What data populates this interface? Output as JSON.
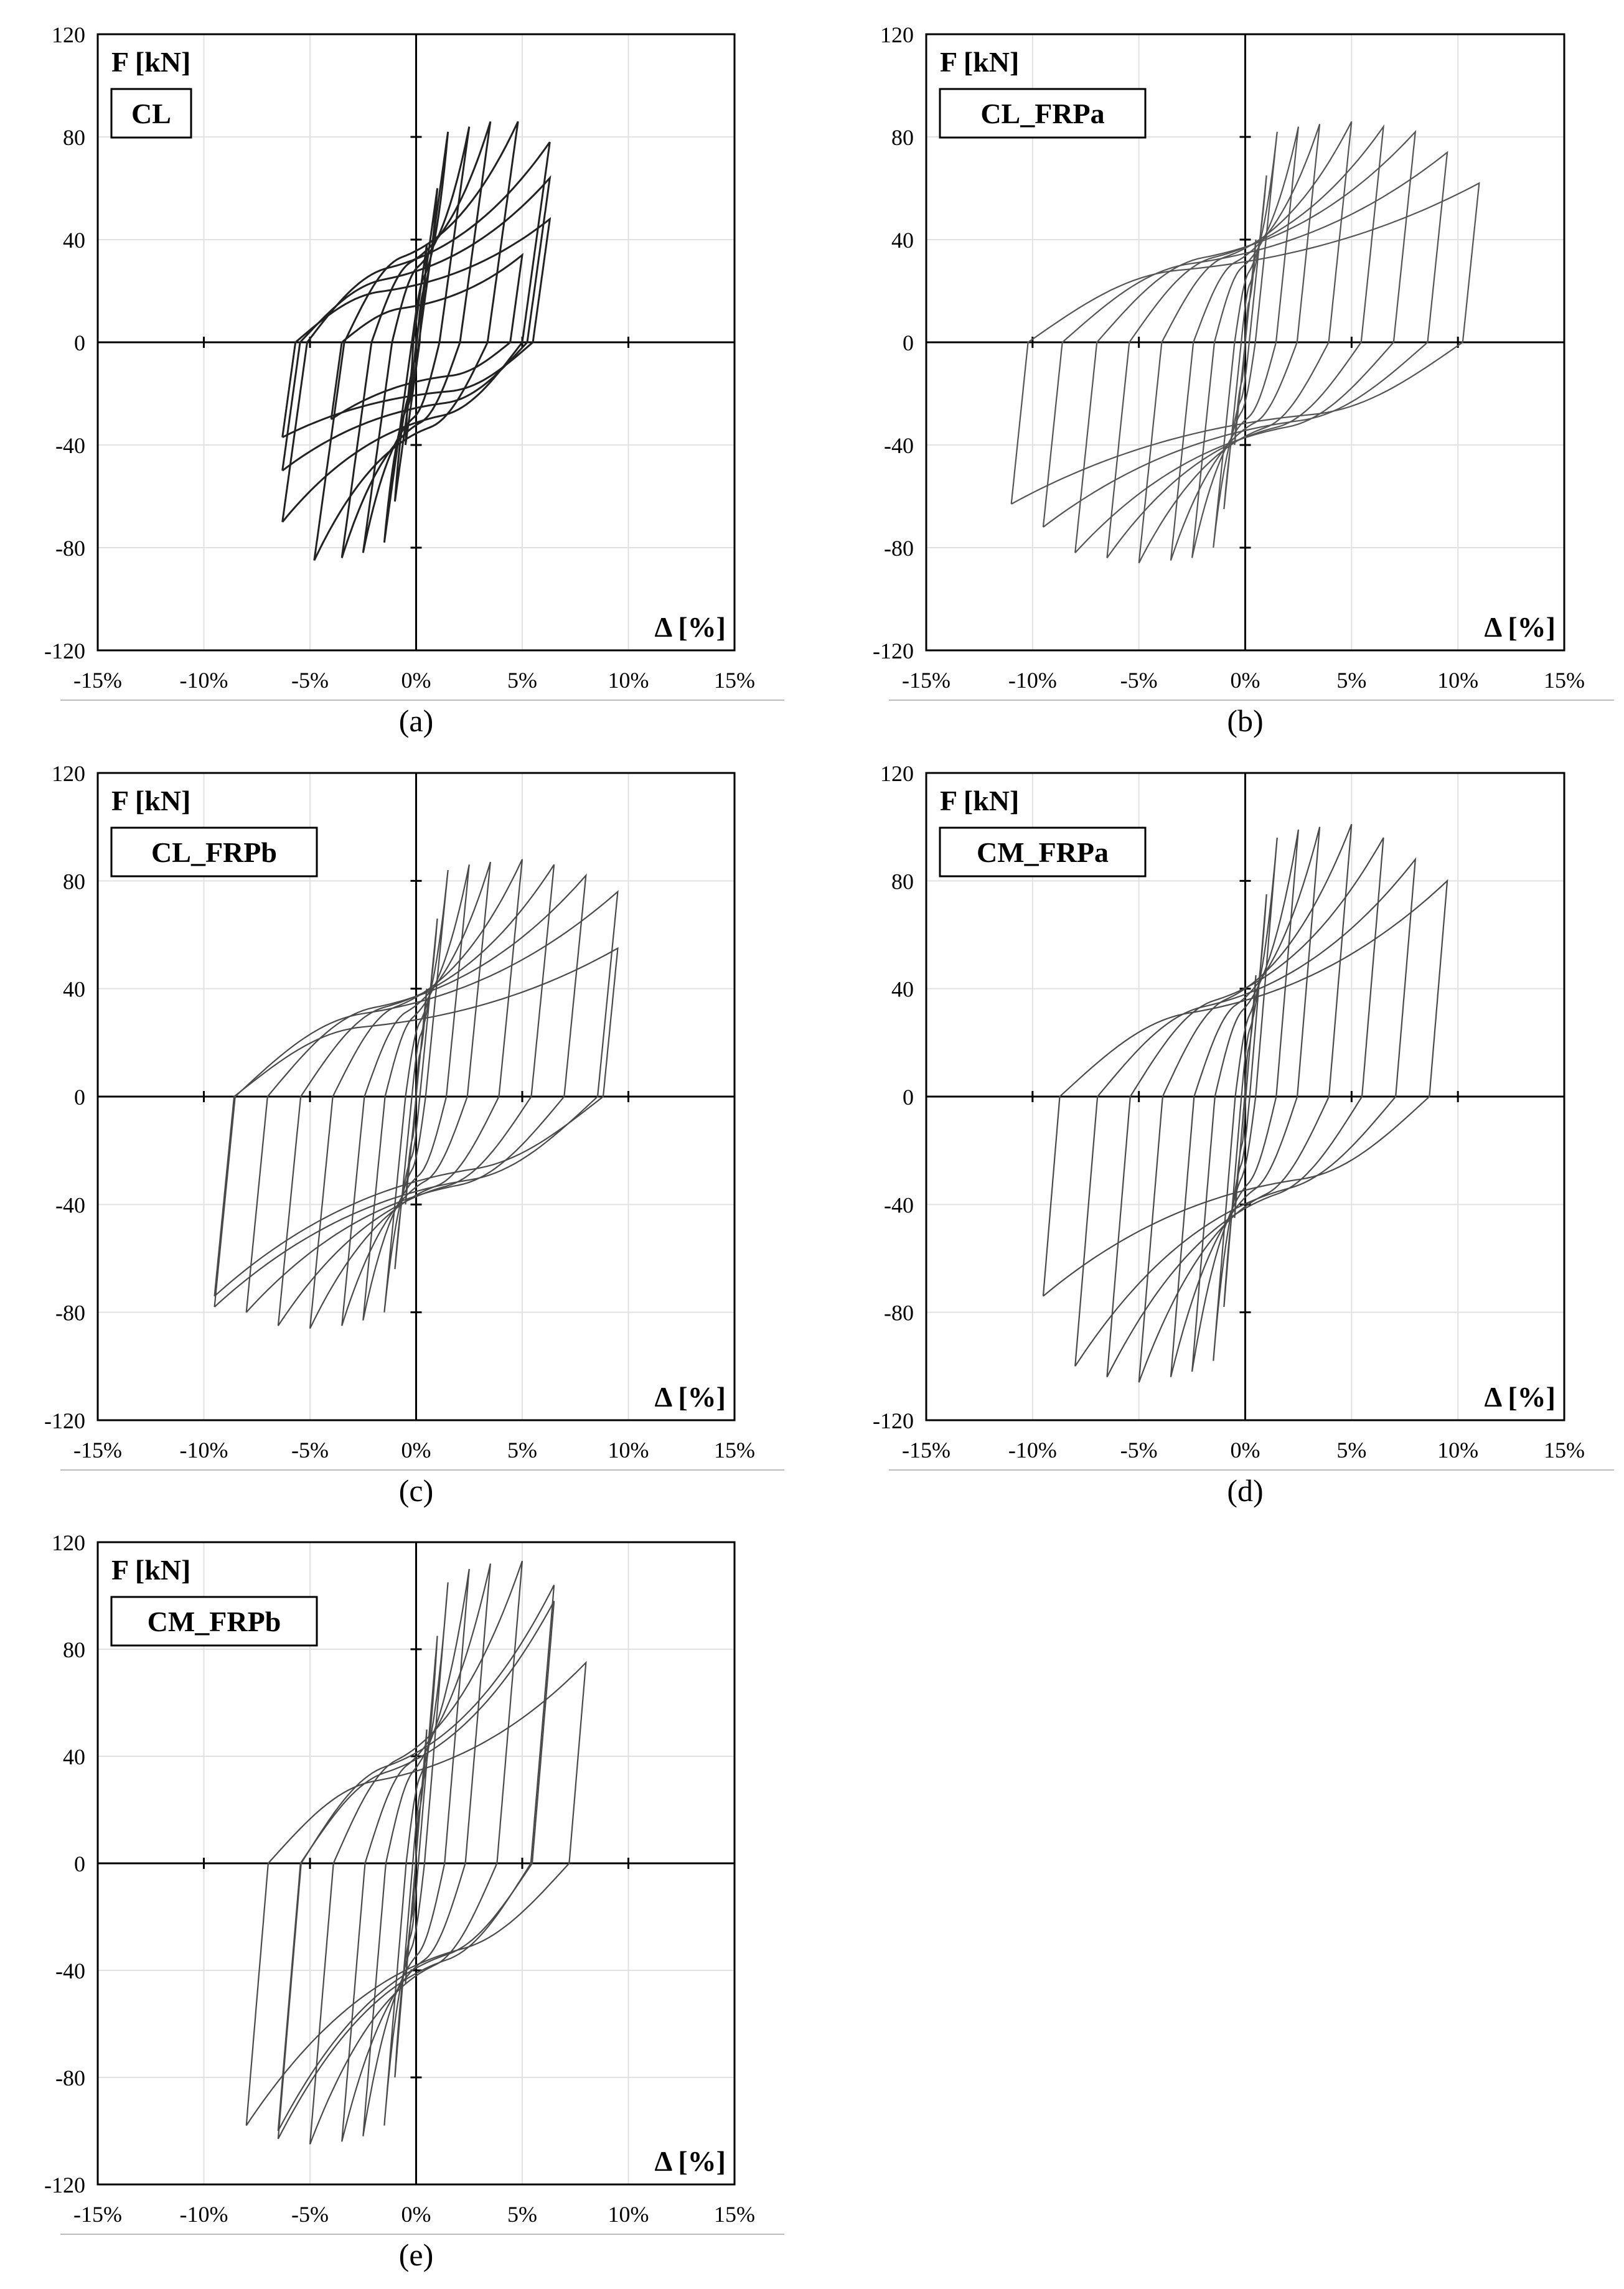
{
  "figure": {
    "captions": [
      "(a)",
      "(b)",
      "(c)",
      "(d)",
      "(e)"
    ]
  },
  "chart_data": [
    {
      "type": "line",
      "panel": "(a)",
      "specimen_label": "CL",
      "ylabel": "F [kN]",
      "xlabel": "Δ [%]",
      "xlim": [
        -15,
        15
      ],
      "ylim": [
        -120,
        120
      ],
      "x_ticks": [
        "-15%",
        "-10%",
        "-5%",
        "0%",
        "5%",
        "10%",
        "15%"
      ],
      "y_ticks": [
        "120",
        "80",
        "40",
        "0",
        "-40",
        "-80",
        "-120"
      ],
      "grid": true,
      "line_color": "#222222",
      "cycles": [
        {
          "dmax": 0.5,
          "fpos": 38,
          "dmin": -0.5,
          "fneg": -40,
          "ypos": 12,
          "yneg": -12
        },
        {
          "dmax": 1.0,
          "fpos": 60,
          "dmin": -1.0,
          "fneg": -62,
          "ypos": 18,
          "yneg": -18
        },
        {
          "dmax": 1.5,
          "fpos": 82,
          "dmin": -1.5,
          "fneg": -78,
          "ypos": 22,
          "yneg": -22
        },
        {
          "dmax": 2.5,
          "fpos": 84,
          "dmin": -2.5,
          "fneg": -82,
          "ypos": 26,
          "yneg": -26
        },
        {
          "dmax": 3.5,
          "fpos": 86,
          "dmin": -3.5,
          "fneg": -84,
          "ypos": 28,
          "yneg": -28
        },
        {
          "dmax": 4.8,
          "fpos": 86,
          "dmin": -4.8,
          "fneg": -85,
          "ypos": 30,
          "yneg": -30
        },
        {
          "dmax": 6.3,
          "fpos": 78,
          "dmin": -6.3,
          "fneg": -70,
          "ypos": 26,
          "yneg": -26
        },
        {
          "dmax": 6.3,
          "fpos": 64,
          "dmin": -6.3,
          "fneg": -50,
          "ypos": 22,
          "yneg": -22
        },
        {
          "dmax": 6.3,
          "fpos": 48,
          "dmin": -6.3,
          "fneg": -37,
          "ypos": 18,
          "yneg": -18
        },
        {
          "dmax": 5.0,
          "fpos": 34,
          "dmin": -4.0,
          "fneg": -30,
          "ypos": 12,
          "yneg": -12
        }
      ]
    },
    {
      "type": "line",
      "panel": "(b)",
      "specimen_label": "CL_FRPa",
      "ylabel": "F [kN]",
      "xlabel": "Δ [%]",
      "xlim": [
        -15,
        15
      ],
      "ylim": [
        -120,
        120
      ],
      "x_ticks": [
        "-15%",
        "-10%",
        "-5%",
        "0%",
        "5%",
        "10%",
        "15%"
      ],
      "y_ticks": [
        "120",
        "80",
        "40",
        "0",
        "-40",
        "-80",
        "-120"
      ],
      "grid": true,
      "line_color": "#555555",
      "cycles": [
        {
          "dmax": 0.5,
          "fpos": 40,
          "dmin": -0.5,
          "fneg": -40,
          "ypos": 14,
          "yneg": -14
        },
        {
          "dmax": 1.0,
          "fpos": 65,
          "dmin": -1.0,
          "fneg": -65,
          "ypos": 20,
          "yneg": -20
        },
        {
          "dmax": 1.5,
          "fpos": 82,
          "dmin": -1.5,
          "fneg": -80,
          "ypos": 24,
          "yneg": -24
        },
        {
          "dmax": 2.5,
          "fpos": 84,
          "dmin": -2.5,
          "fneg": -84,
          "ypos": 26,
          "yneg": -26
        },
        {
          "dmax": 3.5,
          "fpos": 85,
          "dmin": -3.5,
          "fneg": -85,
          "ypos": 28,
          "yneg": -28
        },
        {
          "dmax": 5.0,
          "fpos": 86,
          "dmin": -5.0,
          "fneg": -86,
          "ypos": 30,
          "yneg": -30
        },
        {
          "dmax": 6.5,
          "fpos": 84,
          "dmin": -6.5,
          "fneg": -84,
          "ypos": 30,
          "yneg": -30
        },
        {
          "dmax": 8.0,
          "fpos": 82,
          "dmin": -8.0,
          "fneg": -82,
          "ypos": 30,
          "yneg": -30
        },
        {
          "dmax": 9.5,
          "fpos": 74,
          "dmin": -9.5,
          "fneg": -72,
          "ypos": 28,
          "yneg": -28
        },
        {
          "dmax": 11.0,
          "fpos": 62,
          "dmin": -11.0,
          "fneg": -63,
          "ypos": 26,
          "yneg": -26
        }
      ]
    },
    {
      "type": "line",
      "panel": "(c)",
      "specimen_label": "CL_FRPb",
      "ylabel": "F [kN]",
      "xlabel": "Δ [%]",
      "xlim": [
        -15,
        15
      ],
      "ylim": [
        -120,
        120
      ],
      "x_ticks": [
        "-15%",
        "-10%",
        "-5%",
        "0%",
        "5%",
        "10%",
        "15%"
      ],
      "y_ticks": [
        "120",
        "80",
        "40",
        "0",
        "-40",
        "-80",
        "-120"
      ],
      "grid": true,
      "line_color": "#4a4a4a",
      "cycles": [
        {
          "dmax": 0.5,
          "fpos": 40,
          "dmin": -0.5,
          "fneg": -40,
          "ypos": 14,
          "yneg": -14
        },
        {
          "dmax": 1.0,
          "fpos": 66,
          "dmin": -1.0,
          "fneg": -64,
          "ypos": 20,
          "yneg": -20
        },
        {
          "dmax": 1.5,
          "fpos": 84,
          "dmin": -1.5,
          "fneg": -80,
          "ypos": 24,
          "yneg": -24
        },
        {
          "dmax": 2.5,
          "fpos": 86,
          "dmin": -2.5,
          "fneg": -83,
          "ypos": 26,
          "yneg": -26
        },
        {
          "dmax": 3.5,
          "fpos": 87,
          "dmin": -3.5,
          "fneg": -85,
          "ypos": 28,
          "yneg": -28
        },
        {
          "dmax": 5.0,
          "fpos": 88,
          "dmin": -5.0,
          "fneg": -86,
          "ypos": 30,
          "yneg": -30
        },
        {
          "dmax": 6.5,
          "fpos": 86,
          "dmin": -6.5,
          "fneg": -85,
          "ypos": 30,
          "yneg": -30
        },
        {
          "dmax": 8.0,
          "fpos": 82,
          "dmin": -8.0,
          "fneg": -80,
          "ypos": 30,
          "yneg": -30
        },
        {
          "dmax": 9.5,
          "fpos": 76,
          "dmin": -9.5,
          "fneg": -78,
          "ypos": 28,
          "yneg": -28
        },
        {
          "dmax": 9.5,
          "fpos": 55,
          "dmin": -9.5,
          "fneg": -74,
          "ypos": 24,
          "yneg": -24
        }
      ]
    },
    {
      "type": "line",
      "panel": "(d)",
      "specimen_label": "CM_FRPa",
      "ylabel": "F [kN]",
      "xlabel": "Δ [%]",
      "xlim": [
        -15,
        15
      ],
      "ylim": [
        -120,
        120
      ],
      "x_ticks": [
        "-15%",
        "-10%",
        "-5%",
        "0%",
        "5%",
        "10%",
        "15%"
      ],
      "y_ticks": [
        "120",
        "80",
        "40",
        "0",
        "-40",
        "-80",
        "-120"
      ],
      "grid": true,
      "line_color": "#4a4a4a",
      "cycles": [
        {
          "dmax": 0.5,
          "fpos": 45,
          "dmin": -0.5,
          "fneg": -45,
          "ypos": 16,
          "yneg": -16
        },
        {
          "dmax": 1.0,
          "fpos": 75,
          "dmin": -1.0,
          "fneg": -78,
          "ypos": 22,
          "yneg": -22
        },
        {
          "dmax": 1.5,
          "fpos": 96,
          "dmin": -1.5,
          "fneg": -98,
          "ypos": 26,
          "yneg": -26
        },
        {
          "dmax": 2.5,
          "fpos": 99,
          "dmin": -2.5,
          "fneg": -102,
          "ypos": 28,
          "yneg": -28
        },
        {
          "dmax": 3.5,
          "fpos": 100,
          "dmin": -3.5,
          "fneg": -104,
          "ypos": 30,
          "yneg": -30
        },
        {
          "dmax": 5.0,
          "fpos": 101,
          "dmin": -5.0,
          "fneg": -106,
          "ypos": 32,
          "yneg": -32
        },
        {
          "dmax": 6.5,
          "fpos": 96,
          "dmin": -6.5,
          "fneg": -104,
          "ypos": 32,
          "yneg": -32
        },
        {
          "dmax": 8.0,
          "fpos": 88,
          "dmin": -8.0,
          "fneg": -100,
          "ypos": 30,
          "yneg": -30
        },
        {
          "dmax": 9.5,
          "fpos": 80,
          "dmin": -9.5,
          "fneg": -74,
          "ypos": 28,
          "yneg": -28
        }
      ]
    },
    {
      "type": "line",
      "panel": "(e)",
      "specimen_label": "CM_FRPb",
      "ylabel": "F [kN]",
      "xlabel": "Δ [%]",
      "xlim": [
        -15,
        15
      ],
      "ylim": [
        -120,
        120
      ],
      "x_ticks": [
        "-15%",
        "-10%",
        "-5%",
        "0%",
        "5%",
        "10%",
        "15%"
      ],
      "y_ticks": [
        "120",
        "80",
        "40",
        "0",
        "-40",
        "-80",
        "-120"
      ],
      "grid": true,
      "line_color": "#4a4a4a",
      "cycles": [
        {
          "dmax": 0.5,
          "fpos": 50,
          "dmin": -0.5,
          "fneg": -45,
          "ypos": 18,
          "yneg": -18
        },
        {
          "dmax": 1.0,
          "fpos": 85,
          "dmin": -1.0,
          "fneg": -80,
          "ypos": 24,
          "yneg": -24
        },
        {
          "dmax": 1.5,
          "fpos": 105,
          "dmin": -1.5,
          "fneg": -98,
          "ypos": 28,
          "yneg": -28
        },
        {
          "dmax": 2.5,
          "fpos": 110,
          "dmin": -2.5,
          "fneg": -102,
          "ypos": 30,
          "yneg": -30
        },
        {
          "dmax": 3.5,
          "fpos": 112,
          "dmin": -3.5,
          "fneg": -104,
          "ypos": 32,
          "yneg": -32
        },
        {
          "dmax": 5.0,
          "fpos": 113,
          "dmin": -5.0,
          "fneg": -105,
          "ypos": 34,
          "yneg": -34
        },
        {
          "dmax": 6.5,
          "fpos": 104,
          "dmin": -6.5,
          "fneg": -103,
          "ypos": 32,
          "yneg": -32
        },
        {
          "dmax": 6.5,
          "fpos": 98,
          "dmin": -6.5,
          "fneg": -100,
          "ypos": 30,
          "yneg": -30
        },
        {
          "dmax": 8.0,
          "fpos": 75,
          "dmin": -8.0,
          "fneg": -98,
          "ypos": 28,
          "yneg": -28
        }
      ]
    }
  ]
}
